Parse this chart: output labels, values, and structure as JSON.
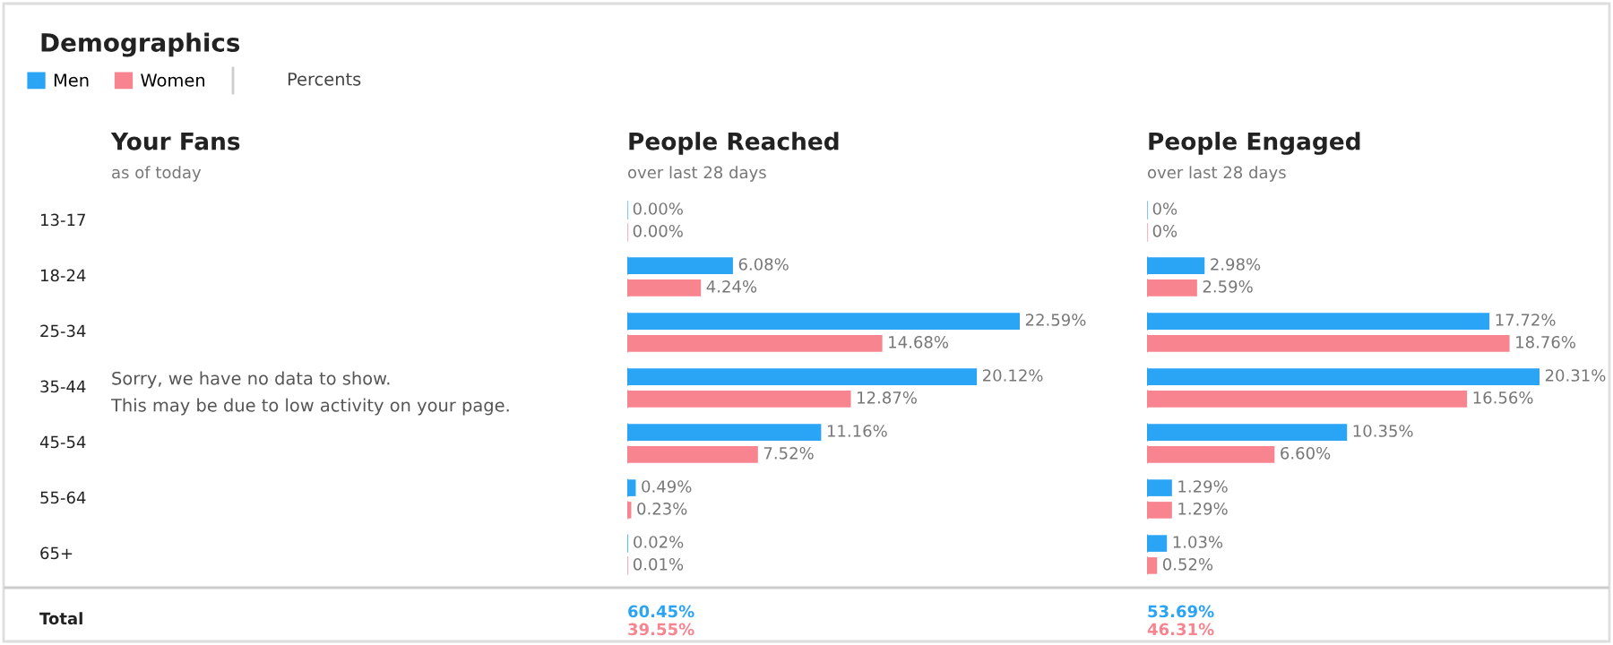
{
  "chart_data": [
    {
      "type": "other",
      "title": "Demographics",
      "annotations": [
        "Percents",
        "Total"
      ]
    },
    {
      "type": "other",
      "title": "Your Fans",
      "subtitle": "as of today",
      "annotations": [
        "Sorry, we have no data to show.",
        "This may be due to low activity on your page."
      ]
    },
    {
      "type": "bar",
      "orientation": "horizontal",
      "title": "People Reached",
      "subtitle": "over last 28 days",
      "legend": "top left",
      "categories": [
        "13-17",
        "18-24",
        "25-34",
        "35-44",
        "45-54",
        "55-64",
        "65+"
      ],
      "series": [
        {
          "name": "Men",
          "color": "#2aa4f4",
          "values": [
            0.0,
            6.08,
            22.59,
            20.12,
            11.16,
            0.49,
            0.02
          ],
          "value_labels": [
            "0.00%",
            "6.08%",
            "22.59%",
            "20.12%",
            "11.16%",
            "0.49%",
            "0.02%"
          ]
        },
        {
          "name": "Women",
          "color": "#f7848f",
          "values": [
            0.0,
            4.24,
            14.68,
            12.87,
            7.52,
            0.23,
            0.01
          ],
          "value_labels": [
            "0.00%",
            "4.24%",
            "14.68%",
            "12.87%",
            "7.52%",
            "0.23%",
            "0.01%"
          ]
        }
      ],
      "annotations": [
        "60.45%",
        "39.55%"
      ]
    },
    {
      "type": "bar",
      "orientation": "horizontal",
      "title": "People Engaged",
      "subtitle": "over last 28 days",
      "categories": [
        null,
        null,
        null,
        null,
        null,
        null,
        null
      ],
      "series": [
        {
          "color": "#2aa4f4",
          "values": [
            0,
            2.98,
            17.72,
            20.31,
            10.35,
            1.29,
            1.03
          ],
          "value_labels": [
            "0%",
            "2.98%",
            "17.72%",
            "20.31%",
            "10.35%",
            "1.29%",
            "1.03%"
          ]
        },
        {
          "color": "#f7848f",
          "values": [
            0,
            2.59,
            18.76,
            16.56,
            6.6,
            1.29,
            0.52
          ],
          "value_labels": [
            "0%",
            "2.59%",
            "18.76%",
            "16.56%",
            "6.60%",
            "1.29%",
            "0.52%"
          ]
        }
      ],
      "annotations": [
        "53.69%",
        "46.31%"
      ]
    }
  ]
}
